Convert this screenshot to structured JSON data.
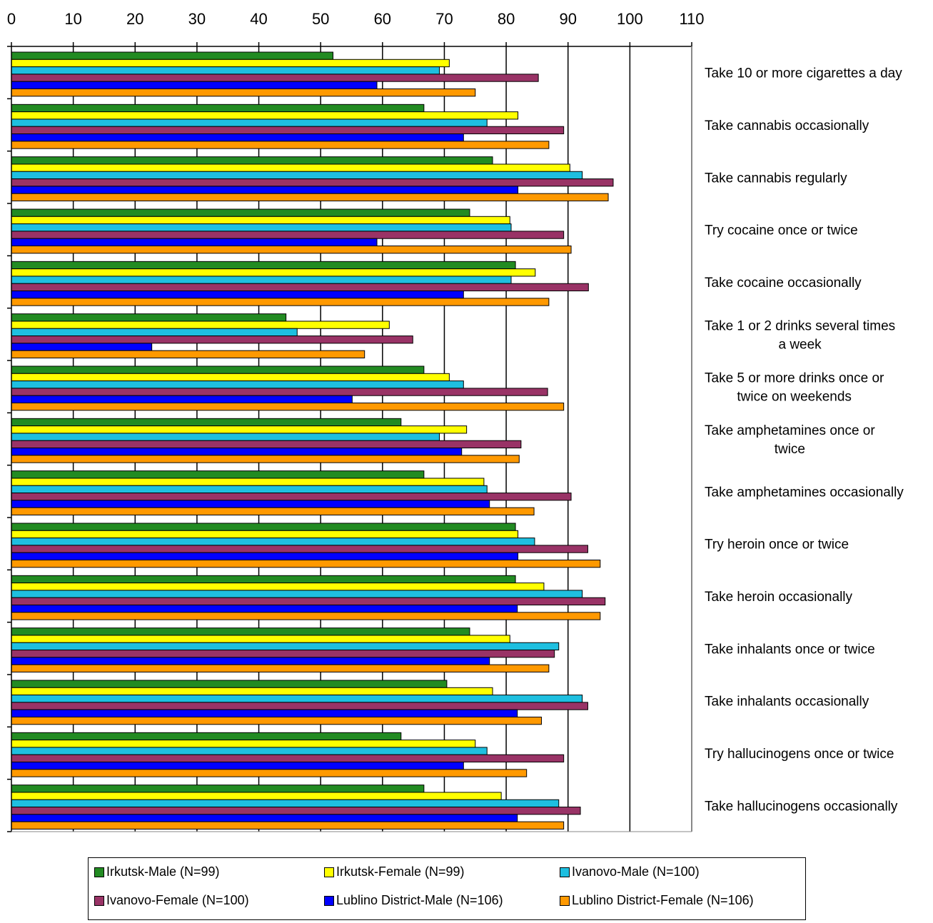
{
  "chart_data": {
    "type": "bar",
    "orientation": "horizontal",
    "xlim": [
      0,
      110
    ],
    "xticks": [
      "0",
      "10",
      "20",
      "30",
      "40",
      "50",
      "60",
      "70",
      "80",
      "90",
      "100",
      "110"
    ],
    "xaxis_position": "top",
    "grid": "vertical",
    "legend_position": "bottom",
    "categories": [
      "Take 10 or more cigarettes a day",
      "Take cannabis occasionally",
      "Take cannabis regularly",
      "Try cocaine once or twice",
      "Take cocaine occasionally",
      "Take 1 or 2 drinks several times a week",
      "Take 5 or more drinks once or twice on weekends",
      "Take amphetamines once or twice",
      "Take amphetamines occasionally",
      "Try heroin once or twice",
      "Take heroin occasionally",
      "Take inhalants once or twice",
      "Take inhalants occasionally",
      "Try hallucinogens once or twice",
      "Take hallucinogens occasionally"
    ],
    "category_lines": [
      [
        "Take 10 or more cigarettes a day"
      ],
      [
        "Take cannabis occasionally"
      ],
      [
        "Take cannabis regularly"
      ],
      [
        "Try cocaine once or twice"
      ],
      [
        "Take cocaine occasionally"
      ],
      [
        "Take 1 or 2 drinks several times",
        "a week"
      ],
      [
        "Take 5 or more drinks once or",
        "twice on weekends"
      ],
      [
        "Take amphetamines once or",
        "twice"
      ],
      [
        "Take amphetamines occasionally"
      ],
      [
        "Try heroin once or twice"
      ],
      [
        "Take heroin occasionally"
      ],
      [
        "Take inhalants once or twice"
      ],
      [
        "Take inhalants occasionally"
      ],
      [
        "Try hallucinogens once or twice"
      ],
      [
        "Take hallucinogens occasionally"
      ]
    ],
    "series": [
      {
        "name": "Irkutsk-Male (N=99)",
        "color": "#228B22",
        "values": [
          52,
          66.7,
          77.8,
          74.1,
          81.5,
          44.4,
          66.7,
          63,
          66.7,
          81.5,
          81.5,
          74.1,
          70.4,
          63,
          66.7
        ]
      },
      {
        "name": "Irkutsk-Female (N=99)",
        "color": "#FFFF00",
        "values": [
          70.8,
          81.9,
          90.3,
          80.6,
          84.7,
          61.1,
          70.8,
          73.6,
          76.4,
          81.9,
          86.1,
          80.6,
          77.8,
          75,
          79.2
        ]
      },
      {
        "name": "Ivanovo-Male (N=100)",
        "color": "#1EBFE0",
        "values": [
          69.2,
          76.9,
          92.3,
          80.8,
          80.8,
          46.2,
          73.1,
          69.2,
          76.9,
          84.6,
          92.3,
          88.5,
          92.3,
          76.9,
          88.5
        ]
      },
      {
        "name": "Ivanovo-Female (N=100)",
        "color": "#993366",
        "values": [
          85.2,
          89.3,
          97.3,
          89.3,
          93.3,
          64.9,
          86.7,
          82.4,
          90.5,
          93.2,
          96,
          87.8,
          93.2,
          89.3,
          92
        ]
      },
      {
        "name": "Lublino District-Male (N=106)",
        "color": "#0000FF",
        "values": [
          59.1,
          73.1,
          81.9,
          59.1,
          73.1,
          22.7,
          55.1,
          72.8,
          77.3,
          81.9,
          81.8,
          77.3,
          81.8,
          73.1,
          81.8
        ]
      },
      {
        "name": "Lublino District-Female (N=106)",
        "color": "#FF9900",
        "values": [
          75,
          86.9,
          96.5,
          90.5,
          86.9,
          57.1,
          89.3,
          82.1,
          84.5,
          95.2,
          95.2,
          86.9,
          85.7,
          83.3,
          89.3
        ]
      }
    ]
  }
}
